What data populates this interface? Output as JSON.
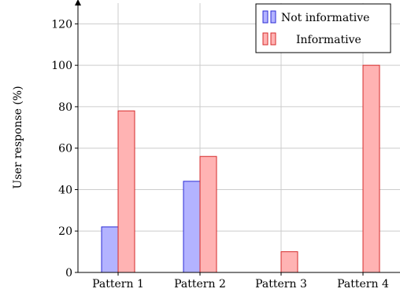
{
  "chart_data": {
    "type": "bar",
    "categories": [
      "Pattern 1",
      "Pattern 2",
      "Pattern 3",
      "Pattern 4"
    ],
    "series": [
      {
        "name": "Not informative",
        "values": [
          22,
          44,
          0,
          0
        ],
        "fill": "#b3b3ff",
        "stroke": "#2b2bd6"
      },
      {
        "name": "Informative",
        "values": [
          78,
          56,
          10,
          100
        ],
        "fill": "#ffb3b3",
        "stroke": "#d62b2b"
      }
    ],
    "title": "",
    "xlabel": "",
    "ylabel": "User response (%)",
    "ylim": [
      0,
      130
    ],
    "yticks": [
      0,
      20,
      40,
      60,
      80,
      100,
      120
    ],
    "ytick_labels": [
      "0",
      "20",
      "40",
      "60",
      "80",
      "100",
      "120"
    ],
    "grid": true,
    "legend_position": "top-right"
  }
}
